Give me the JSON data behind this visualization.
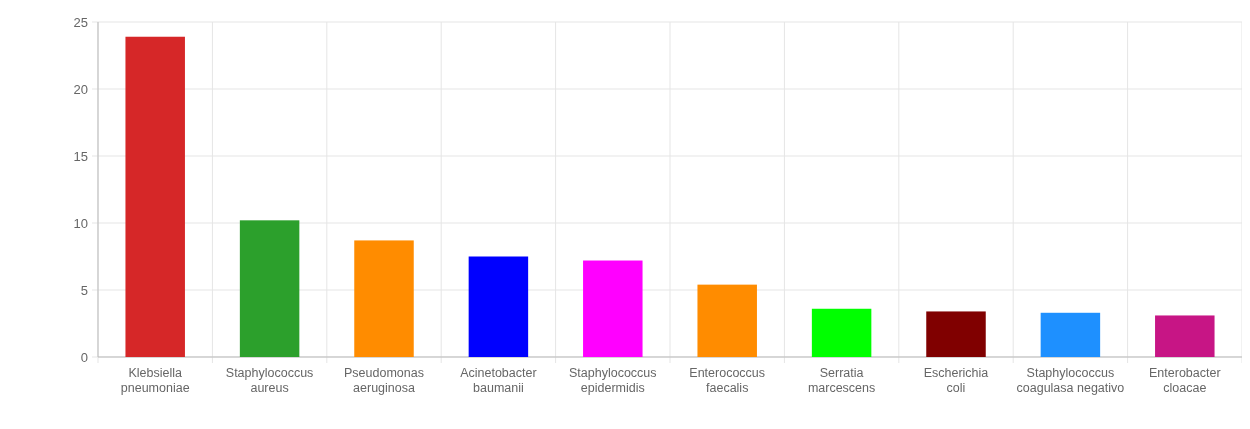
{
  "chart_data": {
    "type": "bar",
    "categories": [
      "Klebsiella pneumoniae",
      "Staphylococcus aureus",
      "Pseudomonas aeruginosa",
      "Acinetobacter baumanii",
      "Staphylococcus epidermidis",
      "Enterococcus faecalis",
      "Serratia marcescens",
      "Escherichia coli",
      "Staphylococcus coagulasa negativo",
      "Enterobacter cloacae"
    ],
    "values": [
      23.9,
      10.2,
      8.7,
      7.5,
      7.2,
      5.4,
      3.6,
      3.4,
      3.3,
      3.1
    ],
    "colors": [
      "#d62728",
      "#2ca02c",
      "#ff8c00",
      "#0000ff",
      "#ff00ff",
      "#ff8c00",
      "#00ff00",
      "#800000",
      "#1e90ff",
      "#c71585"
    ],
    "ylim": [
      0,
      25
    ],
    "yticks": [
      0,
      5,
      10,
      15,
      20,
      25
    ],
    "grid": true
  }
}
